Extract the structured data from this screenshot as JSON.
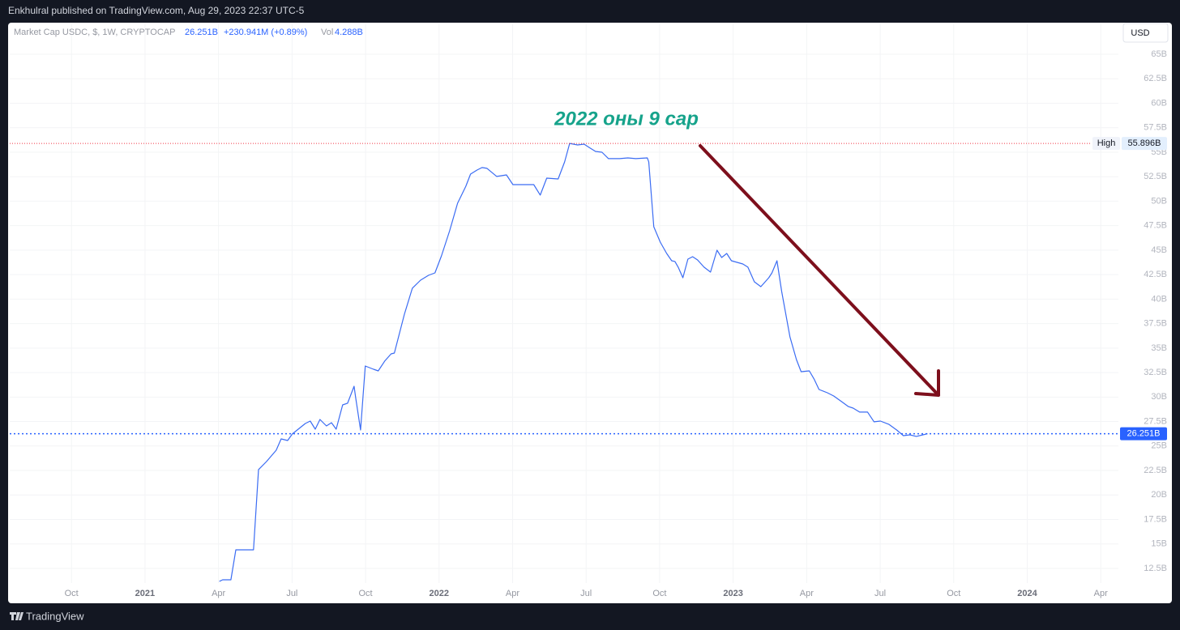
{
  "header": {
    "text": "Enkhulral published on TradingView.com, Aug 29, 2023 22:37 UTC-5"
  },
  "footer": {
    "brand": "TradingView"
  },
  "currency": "USD",
  "chart_data": {
    "type": "line",
    "series": [
      {
        "name": "Market Cap USDC, $, 1W, CRYPTOCAP",
        "color": "#3b6cf3",
        "values": [
          11.18,
          11.34,
          11.34,
          14.4,
          14.4,
          22.59,
          23.41,
          24.57,
          25.73,
          25.56,
          26.23,
          27.3,
          27.55,
          26.72,
          27.71,
          27.05,
          27.38,
          26.72,
          29.2,
          29.37,
          31.1,
          30.03,
          26.64,
          33.17,
          32.84,
          32.67,
          33.67,
          34.41,
          34.49,
          38.46,
          41.11,
          41.93,
          42.43,
          42.68,
          44.41,
          46.98,
          49.79,
          51.52,
          52.76,
          53.18,
          53.43,
          53.35,
          52.52,
          52.68,
          51.69,
          51.69,
          50.62,
          52.35,
          52.27,
          54.01,
          55.896,
          55.74,
          55.82,
          55.49,
          55.08,
          55.0,
          54.34,
          54.34,
          54.42,
          54.34,
          54.42,
          54.01,
          47.39,
          45.82,
          44.66,
          43.92,
          43.84,
          43.26,
          42.18,
          44.08,
          44.33,
          44.0,
          43.26,
          42.76,
          44.99,
          44.25,
          44.66,
          43.92,
          43.59,
          43.26,
          41.77,
          41.27,
          42.18,
          42.68,
          43.92,
          40.78,
          36.15,
          33.83,
          32.59,
          32.67,
          31.85,
          30.77,
          30.44,
          30.11,
          29.53,
          29.04,
          28.87,
          28.46,
          28.46,
          27.47,
          27.55,
          27.22,
          26.64,
          26.06,
          26.14,
          25.98,
          26.14,
          26.251
        ]
      }
    ],
    "x": [
      2021.253,
      2021.264,
      2021.292,
      2021.309,
      2021.369,
      2021.386,
      2021.413,
      2021.446,
      2021.463,
      2021.485,
      2021.501,
      2021.545,
      2021.562,
      2021.579,
      2021.595,
      2021.617,
      2021.634,
      2021.65,
      2021.672,
      2021.689,
      2021.711,
      2021.716,
      2021.733,
      2021.749,
      2021.777,
      2021.793,
      2021.815,
      2021.837,
      2021.848,
      2021.882,
      2021.909,
      2021.937,
      2021.964,
      2021.986,
      2022.008,
      2022.036,
      2022.063,
      2022.091,
      2022.107,
      2022.129,
      2022.146,
      2022.163,
      2022.196,
      2022.229,
      2022.251,
      2022.322,
      2022.344,
      2022.366,
      2022.405,
      2022.427,
      2022.444,
      2022.471,
      2022.493,
      2022.51,
      2022.532,
      2022.554,
      2022.576,
      2022.614,
      2022.642,
      2022.669,
      2022.708,
      2022.713,
      2022.73,
      2022.752,
      2022.774,
      2022.791,
      2022.802,
      2022.813,
      2022.829,
      2022.846,
      2022.862,
      2022.879,
      2022.901,
      2022.923,
      2022.945,
      2022.961,
      2022.978,
      2022.994,
      2023.033,
      2023.05,
      2023.072,
      2023.094,
      2023.121,
      2023.132,
      2023.149,
      2023.165,
      2023.193,
      2023.215,
      2023.231,
      2023.259,
      2023.275,
      2023.292,
      2023.32,
      2023.342,
      2023.369,
      2023.391,
      2023.408,
      2023.43,
      2023.457,
      2023.479,
      2023.501,
      2023.529,
      2023.556,
      2023.579,
      2023.601,
      2023.623,
      2023.645,
      2023.661
    ],
    "xlim": [
      2020.54,
      2024.31
    ],
    "xticks": [
      {
        "value": 2020.75,
        "label": "Oct"
      },
      2021,
      {
        "value": 2021.25,
        "label": "Apr"
      },
      {
        "value": 2021.5,
        "label": "Jul"
      },
      {
        "value": 2021.75,
        "label": "Oct"
      },
      2022,
      {
        "value": 2022.25,
        "label": "Apr"
      },
      {
        "value": 2022.5,
        "label": "Jul"
      },
      {
        "value": 2022.75,
        "label": "Oct"
      },
      2023,
      {
        "value": 2023.25,
        "label": "Apr"
      },
      {
        "value": 2023.5,
        "label": "Jul"
      },
      {
        "value": 2023.75,
        "label": "Oct"
      },
      2024,
      {
        "value": 2024.25,
        "label": "Apr"
      }
    ],
    "ylim": [
      11.01,
      65.91
    ],
    "yticks": [
      {
        "value": 12.5,
        "label": "12.5B"
      },
      {
        "value": 15,
        "label": "15B"
      },
      {
        "value": 17.5,
        "label": "17.5B"
      },
      {
        "value": 20,
        "label": "20B"
      },
      {
        "value": 22.5,
        "label": "22.5B"
      },
      {
        "value": 25,
        "label": "25B"
      },
      {
        "value": 27.5,
        "label": "27.5B"
      },
      {
        "value": 30,
        "label": "30B"
      },
      {
        "value": 32.5,
        "label": "32.5B"
      },
      {
        "value": 35,
        "label": "35B"
      },
      {
        "value": 37.5,
        "label": "37.5B"
      },
      {
        "value": 40,
        "label": "40B"
      },
      {
        "value": 42.5,
        "label": "42.5B"
      },
      {
        "value": 45,
        "label": "45B"
      },
      {
        "value": 47.5,
        "label": "47.5B"
      },
      {
        "value": 50,
        "label": "50B"
      },
      {
        "value": 52.5,
        "label": "52.5B"
      },
      {
        "value": 55,
        "label": "55B"
      },
      {
        "value": 57.5,
        "label": "57.5B"
      },
      {
        "value": 60,
        "label": "60B"
      },
      {
        "value": 62.5,
        "label": "62.5B"
      },
      {
        "value": 65,
        "label": "65B"
      }
    ],
    "grid": true,
    "last": {
      "value": 26.251,
      "label": "26.251B",
      "color": "#2962ff"
    },
    "change": "+230.941M (+0.89%)",
    "volume_label": "Vol",
    "volume": "4.288B",
    "high": {
      "name": "High",
      "value": 55.896,
      "label": "55.896B",
      "color": "#f23645"
    },
    "annotation": "2022 оны 9 сар"
  }
}
